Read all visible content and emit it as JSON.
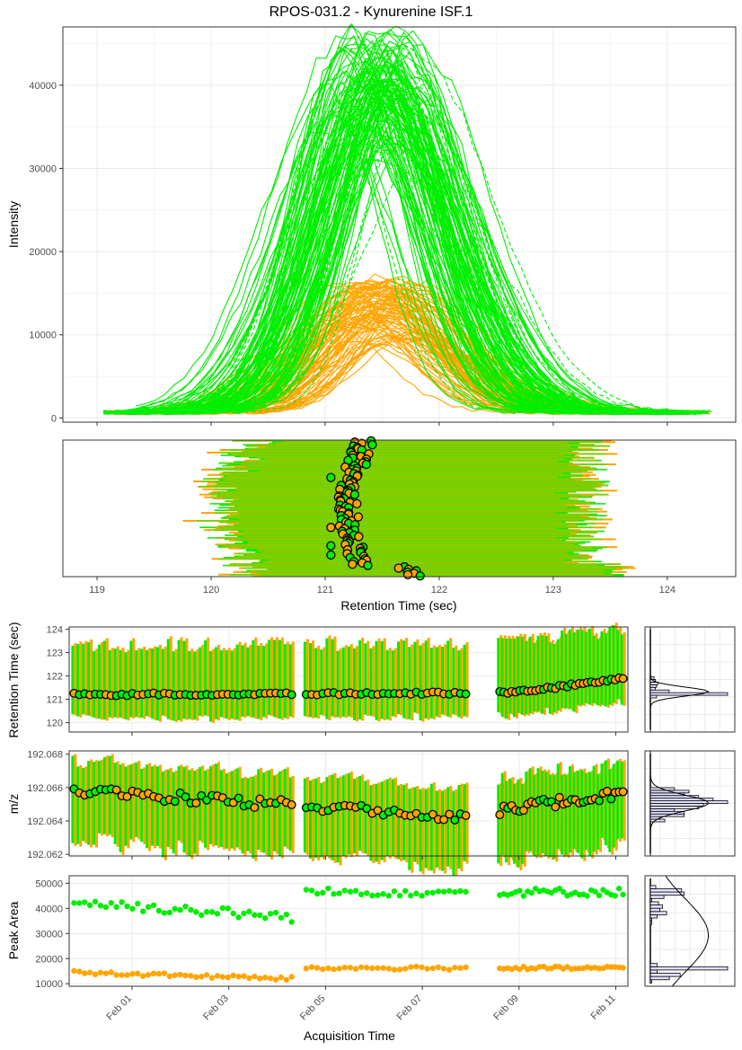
{
  "title": "RPOS-031.2 - Kynurenine ISF.1",
  "colors": {
    "green": "#00ee00",
    "orange": "#ffa500",
    "overlap": "#80d000",
    "grid": "#ebebeb",
    "panel_border": "#333333",
    "hist_fill": "#e0e0ff",
    "text": "#000000",
    "tick_text": "#4d4d4d"
  },
  "chart_data": [
    {
      "id": "intensity",
      "type": "line",
      "ylabel": "Intensity",
      "xlim": [
        118.7,
        124.6
      ],
      "ylim": [
        -500,
        47000
      ],
      "x_ticks": [
        119,
        120,
        121,
        122,
        123,
        124
      ],
      "y_ticks": [
        0,
        10000,
        20000,
        30000,
        40000
      ],
      "y_tick_labels": [
        "0",
        "10000",
        "20000",
        "30000",
        "40000"
      ],
      "series": [
        {
          "color_key": "green",
          "traces": 115,
          "apex_rt_range": [
            121.0,
            121.95
          ],
          "apex_intensity_range": [
            30000,
            46000
          ],
          "baseline": 700,
          "rt_start": 119.05,
          "rt_end": 124.4
        },
        {
          "color_key": "orange",
          "traces": 90,
          "apex_rt_range": [
            121.0,
            121.95
          ],
          "apex_intensity_range": [
            8000,
            16000
          ],
          "baseline": 700,
          "rt_start": 119.05,
          "rt_end": 124.4
        }
      ]
    },
    {
      "id": "rt-window",
      "type": "scatter",
      "xlabel": "Retention Time (sec)",
      "xlim": [
        118.7,
        124.6
      ],
      "x_ticks": [
        119,
        120,
        121,
        122,
        123,
        124
      ],
      "x_tick_labels": [
        "119",
        "120",
        "121",
        "122",
        "123",
        "124"
      ],
      "sample_count": 104,
      "window_start_range": [
        119.5,
        120.6
      ],
      "window_end_range": [
        123.0,
        123.9
      ],
      "apex_range": [
        121.1,
        122.0
      ]
    },
    {
      "id": "retention-time",
      "type": "scatter",
      "ylabel": "Retention Time (sec)",
      "ylim": [
        119.6,
        124.1
      ],
      "y_ticks": [
        120,
        121,
        122,
        123,
        124
      ],
      "y_tick_labels": [
        "120",
        "121",
        "122",
        "123",
        "124"
      ],
      "rt_start": 121.2,
      "rt_end": 121.9,
      "window_low": 120.2,
      "window_high": 123.3
    },
    {
      "id": "mz",
      "type": "scatter",
      "ylabel": "m/z",
      "ylim": [
        192.0619,
        192.0682
      ],
      "y_ticks": [
        192.062,
        192.064,
        192.066,
        192.068
      ],
      "y_tick_labels": [
        "192.062",
        "192.064",
        "192.066",
        "192.068"
      ],
      "center_start": 192.0658,
      "center_mid": 192.0643,
      "center_end": 192.0657,
      "bar_low": 192.0628,
      "bar_high": 192.0676
    },
    {
      "id": "peak-area",
      "type": "scatter",
      "ylabel": "Peak Area",
      "xlabel": "Acquisition Time",
      "ylim": [
        9000,
        53000
      ],
      "y_ticks": [
        10000,
        20000,
        30000,
        40000,
        50000
      ],
      "y_tick_labels": [
        "10000",
        "20000",
        "30000",
        "40000",
        "50000"
      ],
      "x_ticks": [
        1,
        3,
        5,
        7,
        9,
        11
      ],
      "x_tick_labels": [
        "Feb 01",
        "Feb 03",
        "Feb 05",
        "Feb 07",
        "Feb 09",
        "Feb 11"
      ],
      "xlim": [
        -0.3,
        11.25
      ],
      "series": [
        {
          "color_key": "green",
          "level_range": [
            34000,
            51000
          ]
        },
        {
          "color_key": "orange",
          "level_range": [
            10500,
            18500
          ]
        }
      ],
      "acquisition_batches": [
        {
          "start": -0.2,
          "end": 4.3,
          "count": 42
        },
        {
          "start": 4.6,
          "end": 7.9,
          "count": 30
        },
        {
          "start": 8.6,
          "end": 11.15,
          "count": 32
        }
      ]
    }
  ]
}
